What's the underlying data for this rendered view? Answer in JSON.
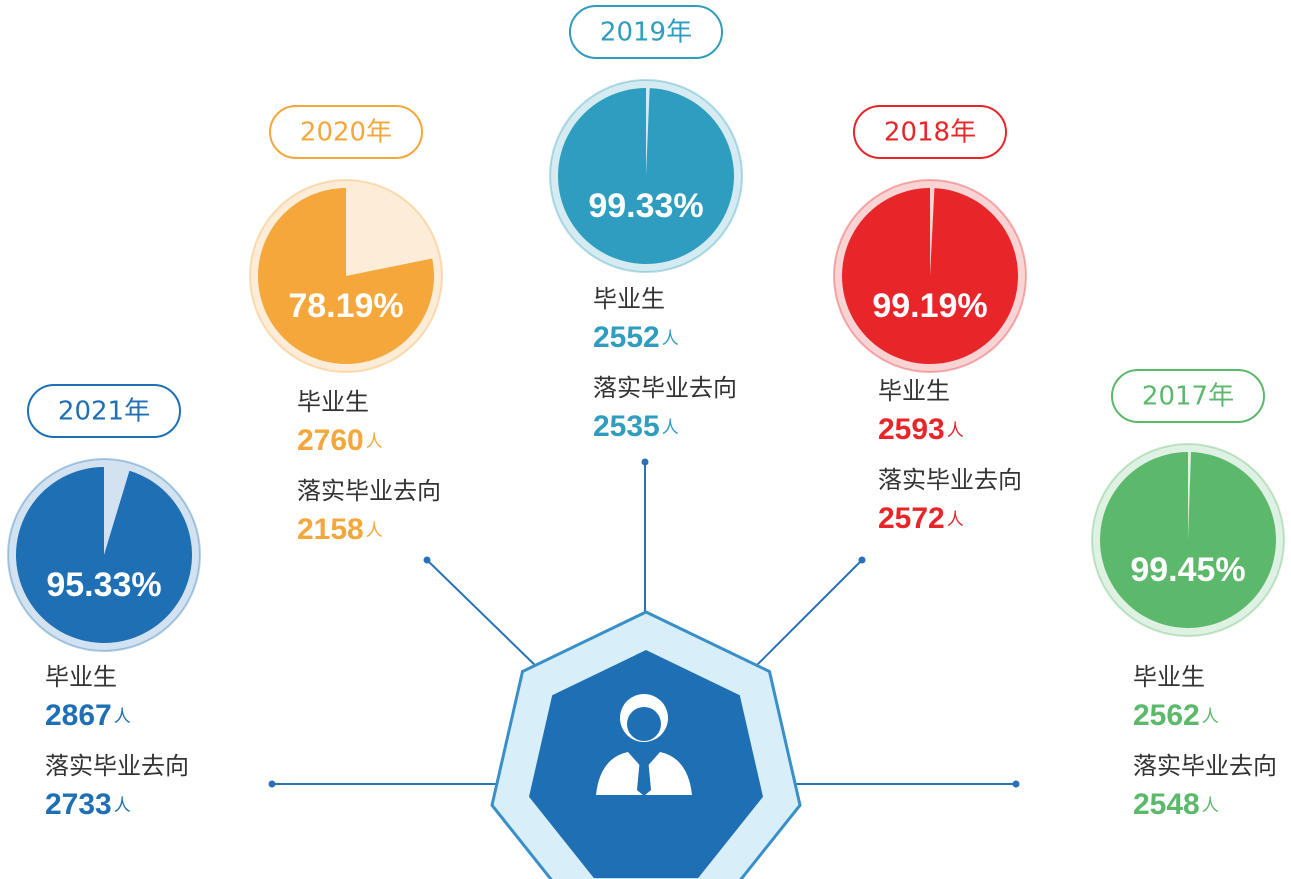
{
  "chart_data": [
    {
      "type": "pie",
      "title": "2021年",
      "values": [
        95.33
      ],
      "value_labels": [
        "95.33%"
      ],
      "color": "#1e6fb4",
      "annotations": [
        {
          "label": "毕业生",
          "value": 2867,
          "unit": "人"
        },
        {
          "label": "落实毕业去向",
          "value": 2733,
          "unit": "人"
        }
      ]
    },
    {
      "type": "pie",
      "title": "2020年",
      "values": [
        78.19
      ],
      "value_labels": [
        "78.19%"
      ],
      "color": "#f5a73b",
      "annotations": [
        {
          "label": "毕业生",
          "value": 2760,
          "unit": "人"
        },
        {
          "label": "落实毕业去向",
          "value": 2158,
          "unit": "人"
        }
      ]
    },
    {
      "type": "pie",
      "title": "2019年",
      "values": [
        99.33
      ],
      "value_labels": [
        "99.33%"
      ],
      "color": "#2f9dbf",
      "annotations": [
        {
          "label": "毕业生",
          "value": 2552,
          "unit": "人"
        },
        {
          "label": "落实毕业去向",
          "value": 2535,
          "unit": "人"
        }
      ]
    },
    {
      "type": "pie",
      "title": "2018年",
      "values": [
        99.19
      ],
      "value_labels": [
        "99.19%"
      ],
      "color": "#e8262a",
      "annotations": [
        {
          "label": "毕业生",
          "value": 2593,
          "unit": "人"
        },
        {
          "label": "落实毕业去向",
          "value": 2572,
          "unit": "人"
        }
      ]
    },
    {
      "type": "pie",
      "title": "2017年",
      "values": [
        99.45
      ],
      "value_labels": [
        "99.45%"
      ],
      "color": "#5cb96c",
      "annotations": [
        {
          "label": "毕业生",
          "value": 2562,
          "unit": "人"
        },
        {
          "label": "落实毕业去向",
          "value": 2548,
          "unit": "人"
        }
      ]
    }
  ]
}
